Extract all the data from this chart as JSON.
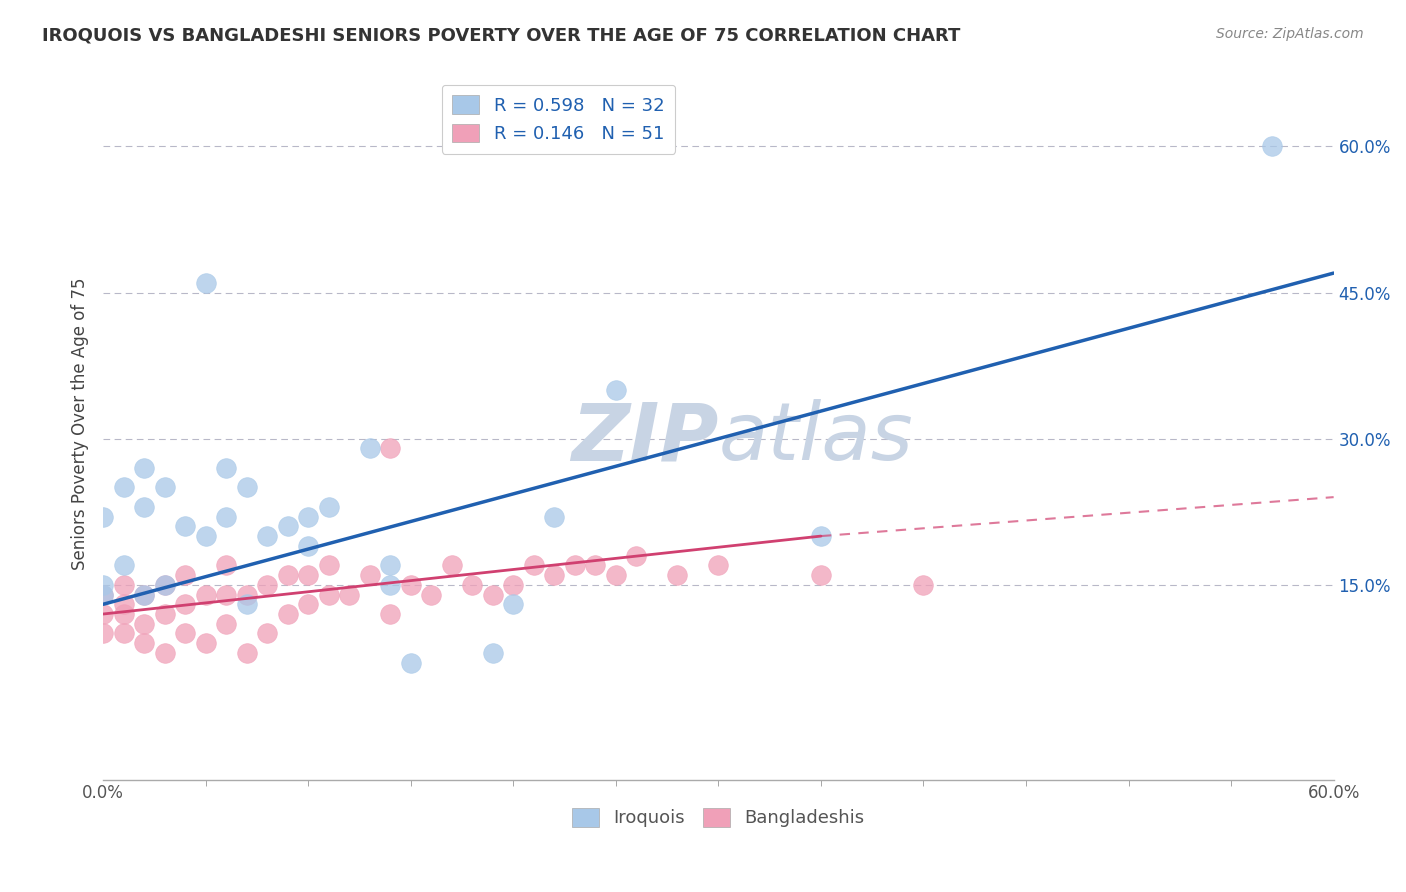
{
  "title": "IROQUOIS VS BANGLADESHI SENIORS POVERTY OVER THE AGE OF 75 CORRELATION CHART",
  "source_text": "Source: ZipAtlas.com",
  "ylabel": "Seniors Poverty Over the Age of 75",
  "ytick_values": [
    0.15,
    0.3,
    0.45,
    0.6
  ],
  "xlim": [
    0.0,
    0.6
  ],
  "ylim": [
    -0.05,
    0.68
  ],
  "legend_r1": "R = 0.598",
  "legend_n1": "N = 32",
  "legend_r2": "R = 0.146",
  "legend_n2": "N = 51",
  "iroquois_color": "#a8c8e8",
  "bangladeshi_color": "#f0a0b8",
  "iroquois_line_color": "#2060b0",
  "bangladeshi_line_color": "#d04070",
  "watermark_color": "#c8d4e4",
  "iroquois_x": [
    0.0,
    0.0,
    0.0,
    0.01,
    0.01,
    0.02,
    0.02,
    0.02,
    0.03,
    0.03,
    0.04,
    0.05,
    0.05,
    0.06,
    0.06,
    0.07,
    0.07,
    0.08,
    0.09,
    0.1,
    0.1,
    0.11,
    0.13,
    0.14,
    0.14,
    0.15,
    0.19,
    0.2,
    0.22,
    0.25,
    0.35,
    0.57
  ],
  "iroquois_y": [
    0.14,
    0.15,
    0.22,
    0.17,
    0.25,
    0.14,
    0.23,
    0.27,
    0.15,
    0.25,
    0.21,
    0.2,
    0.46,
    0.22,
    0.27,
    0.13,
    0.25,
    0.2,
    0.21,
    0.22,
    0.19,
    0.23,
    0.29,
    0.15,
    0.17,
    0.07,
    0.08,
    0.13,
    0.22,
    0.35,
    0.2,
    0.6
  ],
  "bangladeshi_x": [
    0.0,
    0.0,
    0.0,
    0.01,
    0.01,
    0.01,
    0.01,
    0.02,
    0.02,
    0.02,
    0.03,
    0.03,
    0.03,
    0.04,
    0.04,
    0.04,
    0.05,
    0.05,
    0.06,
    0.06,
    0.06,
    0.07,
    0.07,
    0.08,
    0.08,
    0.09,
    0.09,
    0.1,
    0.1,
    0.11,
    0.11,
    0.12,
    0.13,
    0.14,
    0.14,
    0.15,
    0.16,
    0.17,
    0.18,
    0.19,
    0.2,
    0.21,
    0.22,
    0.23,
    0.24,
    0.25,
    0.26,
    0.28,
    0.3,
    0.35,
    0.4
  ],
  "bangladeshi_y": [
    0.1,
    0.12,
    0.14,
    0.1,
    0.12,
    0.13,
    0.15,
    0.09,
    0.11,
    0.14,
    0.08,
    0.12,
    0.15,
    0.1,
    0.13,
    0.16,
    0.09,
    0.14,
    0.11,
    0.14,
    0.17,
    0.08,
    0.14,
    0.1,
    0.15,
    0.12,
    0.16,
    0.13,
    0.16,
    0.14,
    0.17,
    0.14,
    0.16,
    0.12,
    0.29,
    0.15,
    0.14,
    0.17,
    0.15,
    0.14,
    0.15,
    0.17,
    0.16,
    0.17,
    0.17,
    0.16,
    0.18,
    0.16,
    0.17,
    0.16,
    0.15
  ],
  "iq_line_x0": 0.0,
  "iq_line_x1": 0.6,
  "iq_line_y0": 0.13,
  "iq_line_y1": 0.47,
  "bd_line_solid_x0": 0.0,
  "bd_line_solid_x1": 0.35,
  "bd_line_solid_y0": 0.12,
  "bd_line_solid_y1": 0.2,
  "bd_line_dash_x0": 0.35,
  "bd_line_dash_x1": 0.6,
  "bd_line_dash_y0": 0.2,
  "bd_line_dash_y1": 0.24
}
